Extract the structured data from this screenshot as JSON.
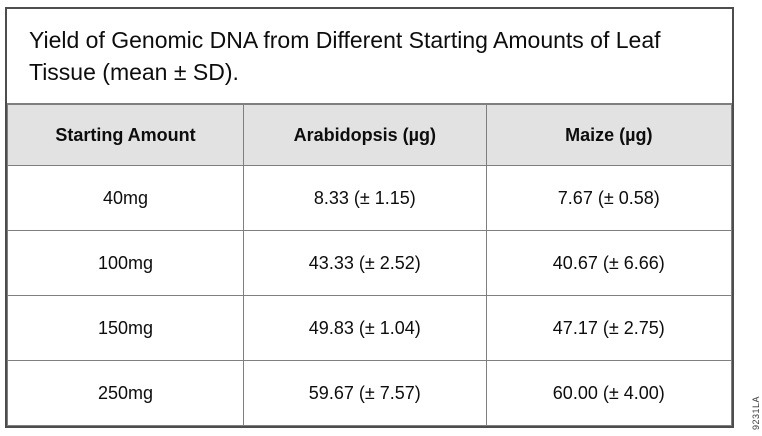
{
  "figure": {
    "side_code": "9231LA"
  },
  "colors": {
    "outer_border": "#4d4d4d",
    "inner_border": "#7f7f7f",
    "header_bg": "#e2e2e2",
    "text": "#0d0d0d"
  },
  "chart_data": {
    "type": "table",
    "title": "Yield of Genomic DNA from Different Starting Amounts of Leaf Tissue (mean ± SD).",
    "columns": [
      "Starting Amount",
      "Arabidopsis (µg)",
      "Maize (µg)"
    ],
    "rows": [
      [
        "40mg",
        "8.33 (± 1.15)",
        "7.67 (± 0.58)"
      ],
      [
        "100mg",
        "43.33 (± 2.52)",
        "40.67 (± 6.66)"
      ],
      [
        "150mg",
        "49.83 (± 1.04)",
        "47.17 (± 2.75)"
      ],
      [
        "250mg",
        "59.67 (± 7.57)",
        "60.00 (± 4.00)"
      ]
    ],
    "numeric": {
      "starting_amount_mg": [
        40,
        100,
        150,
        250
      ],
      "arabidopsis_mean": [
        8.33,
        43.33,
        49.83,
        59.67
      ],
      "arabidopsis_sd": [
        1.15,
        2.52,
        1.04,
        7.57
      ],
      "maize_mean": [
        7.67,
        40.67,
        47.17,
        60.0
      ],
      "maize_sd": [
        0.58,
        6.66,
        2.75,
        4.0
      ]
    }
  }
}
